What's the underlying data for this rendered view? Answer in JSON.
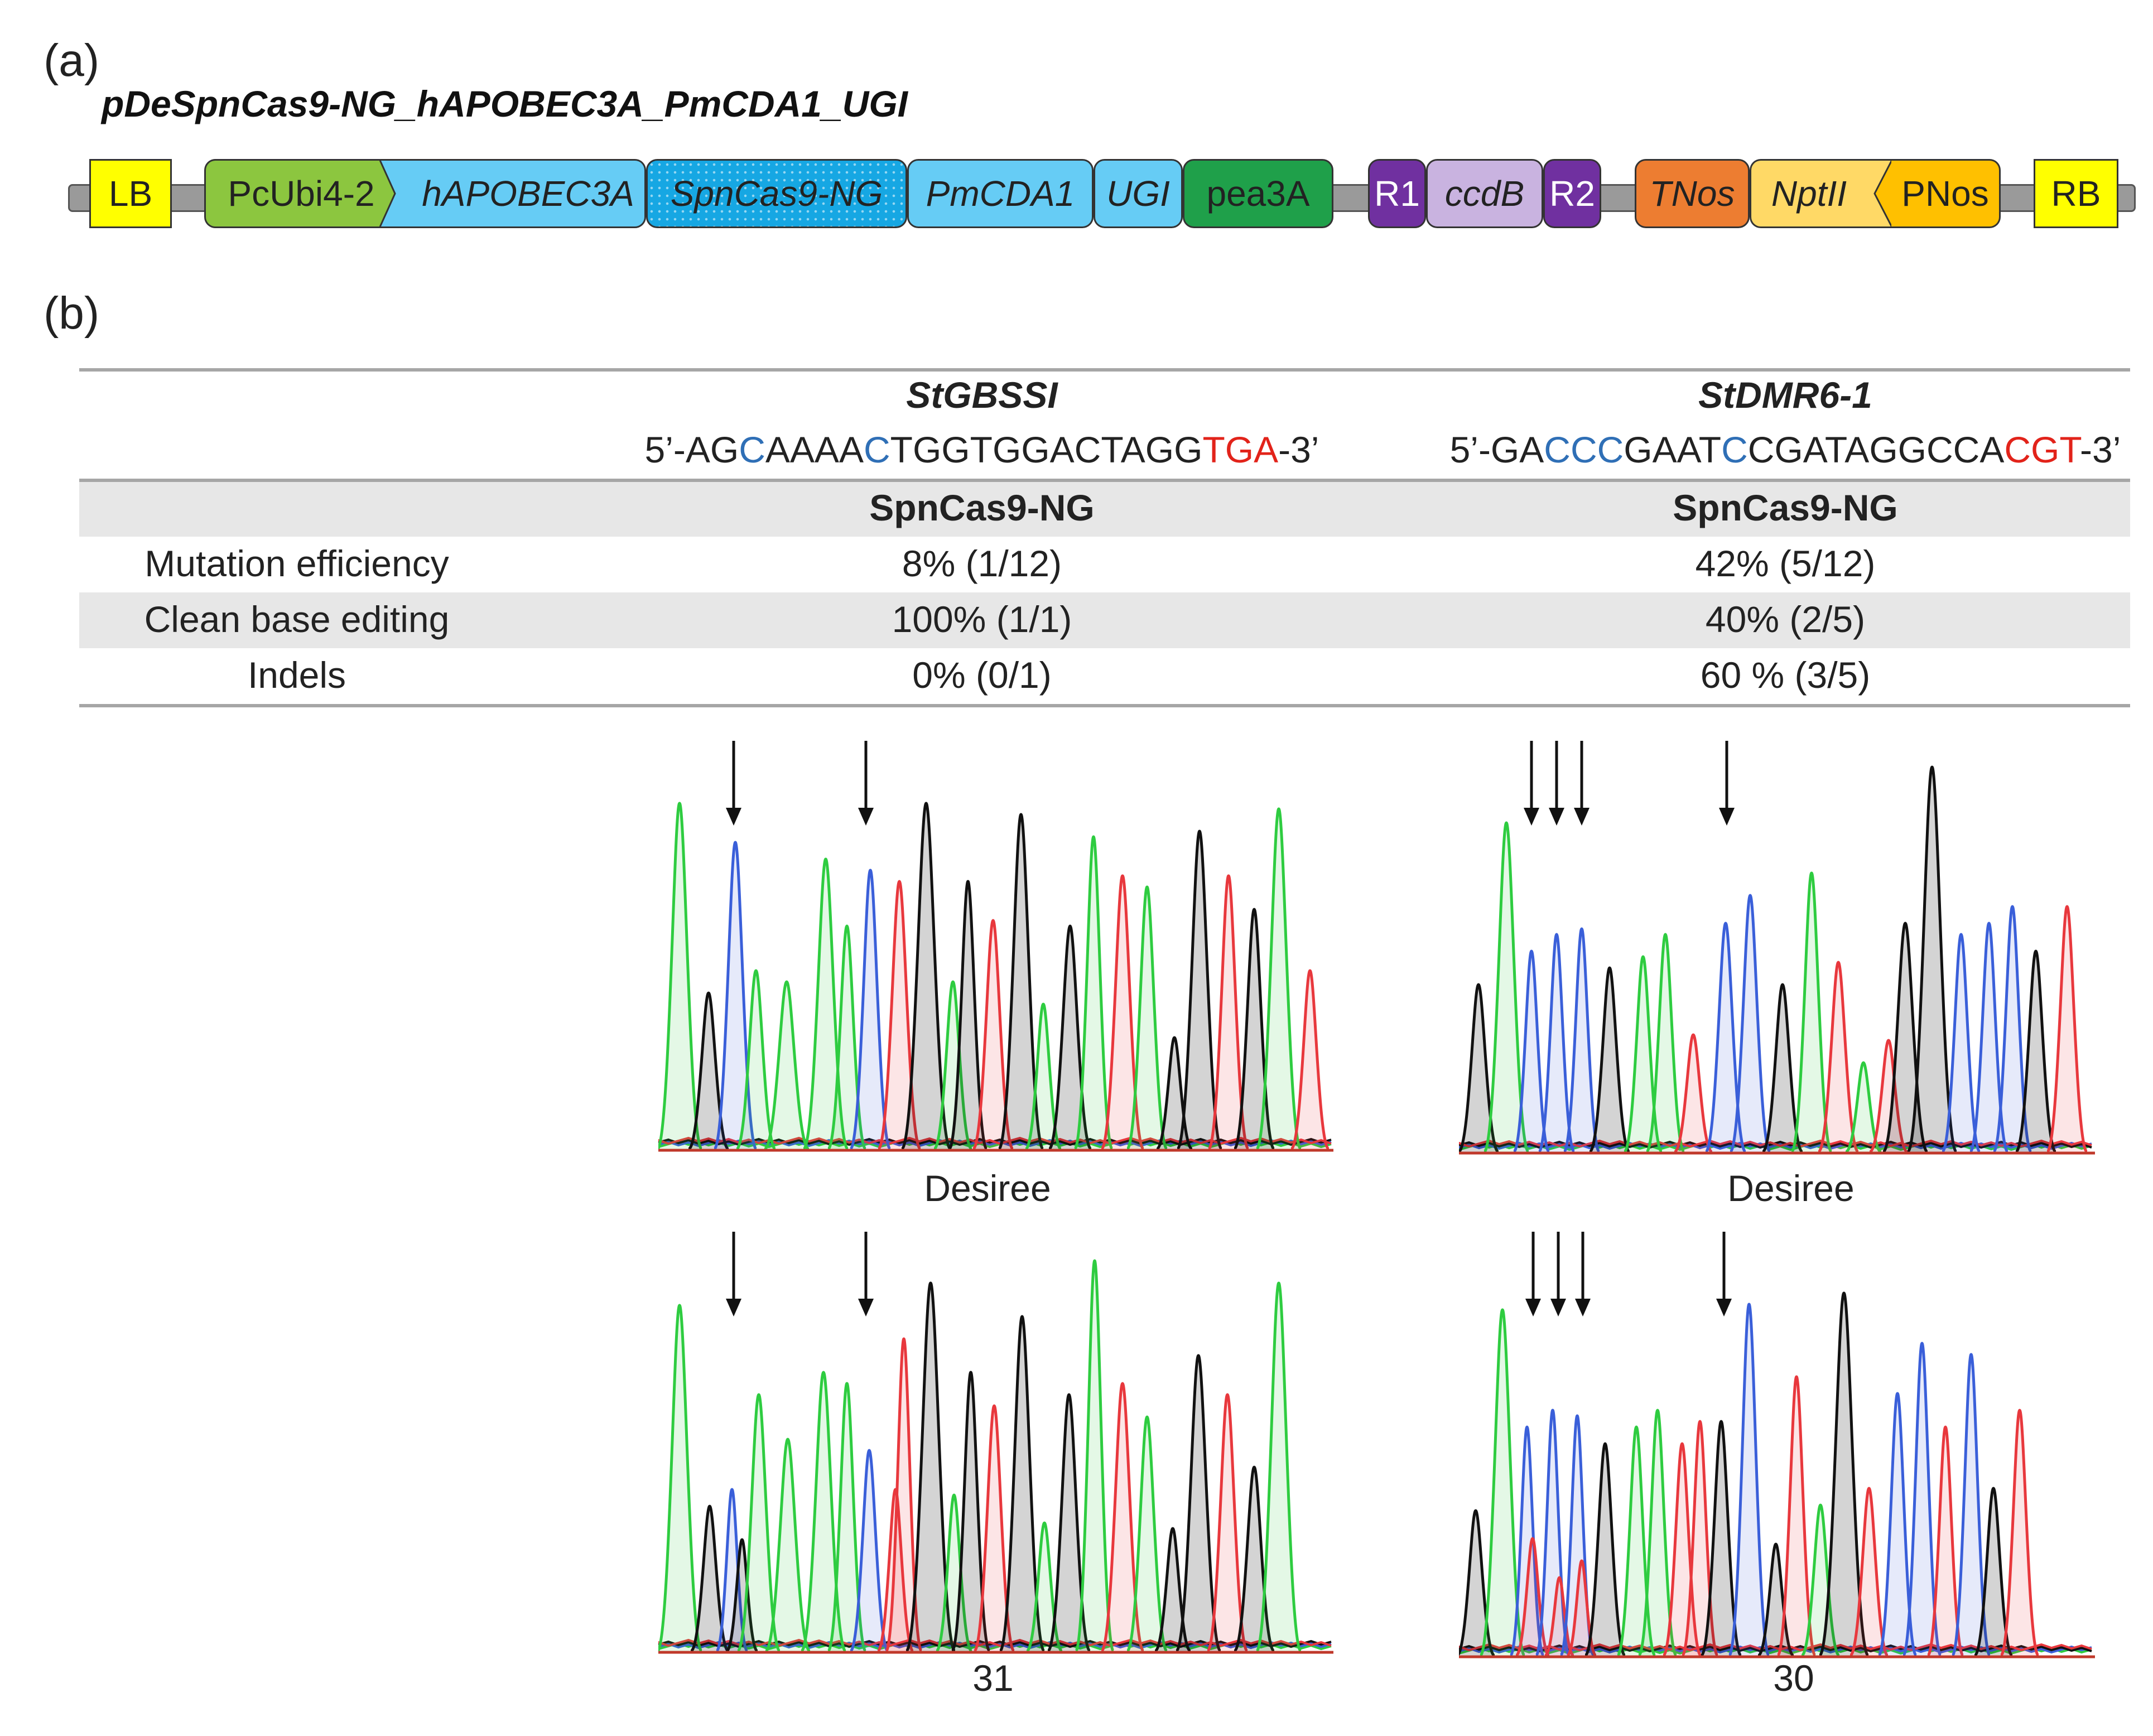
{
  "panel_a": {
    "label": "(a)",
    "plasmid_title": "pDeSpnCas9-NG_hAPOBEC3A_PmCDA1_UGI",
    "segments": [
      {
        "name": "LB",
        "color": "#ffff00"
      },
      {
        "name": "PcUbi4-2",
        "color": "#8cc63f"
      },
      {
        "name": "hAPOBEC3A",
        "color": "#66ccf5"
      },
      {
        "name": "SpnCas9-NG",
        "color": "#16a7e3"
      },
      {
        "name": "PmCDA1",
        "color": "#66ccf5"
      },
      {
        "name": "UGI",
        "color": "#66ccf5"
      },
      {
        "name": "pea3A",
        "color": "#1fa04a"
      },
      {
        "name": "R1",
        "color": "#7030a0"
      },
      {
        "name": "ccdB",
        "color": "#c9b3e0"
      },
      {
        "name": "R2",
        "color": "#7030a0"
      },
      {
        "name": "TNos",
        "color": "#ed7d31"
      },
      {
        "name": "NptII",
        "color": "#ffd966"
      },
      {
        "name": "PNos",
        "color": "#ffc000"
      },
      {
        "name": "RB",
        "color": "#ffff00"
      }
    ]
  },
  "panel_b": {
    "label": "(b)",
    "targets": [
      {
        "gene": "StGBSSI",
        "seq_parts": [
          {
            "t": "5’-AG",
            "c": ""
          },
          {
            "t": "C",
            "c": "b"
          },
          {
            "t": "AAAA",
            "c": ""
          },
          {
            "t": "C",
            "c": "b"
          },
          {
            "t": "TGGTGGACTAGG",
            "c": ""
          },
          {
            "t": "TGA",
            "c": "r"
          },
          {
            "t": "-3’",
            "c": ""
          }
        ],
        "enzyme": "SpnCas9-NG",
        "mutation_efficiency": "8% (1/12)",
        "clean_base_editing": "100% (1/1)",
        "indels": "0% (0/1)",
        "trace_top_label": "Desiree",
        "trace_bottom_label": "31"
      },
      {
        "gene": "StDMR6-1",
        "seq_parts": [
          {
            "t": "5’-GA",
            "c": ""
          },
          {
            "t": "CCC",
            "c": "b"
          },
          {
            "t": "GAAT",
            "c": ""
          },
          {
            "t": "C",
            "c": "b"
          },
          {
            "t": "CGATAGGCCA",
            "c": ""
          },
          {
            "t": "CGT",
            "c": "r"
          },
          {
            "t": "-3’",
            "c": ""
          }
        ],
        "enzyme": "SpnCas9-NG",
        "mutation_efficiency": "42% (5/12)",
        "clean_base_editing": "40% (2/5)",
        "indels": "60 % (3/5)",
        "trace_top_label": "Desiree",
        "trace_bottom_label": "30"
      }
    ],
    "row_labels": {
      "mutation_efficiency": "Mutation efficiency",
      "clean_base_editing": "Clean base editing",
      "indels": "Indels"
    }
  },
  "colors": {
    "A": "#2ecc40",
    "C": "#3a5fd9",
    "G": "#111111",
    "T": "#e8383d"
  }
}
